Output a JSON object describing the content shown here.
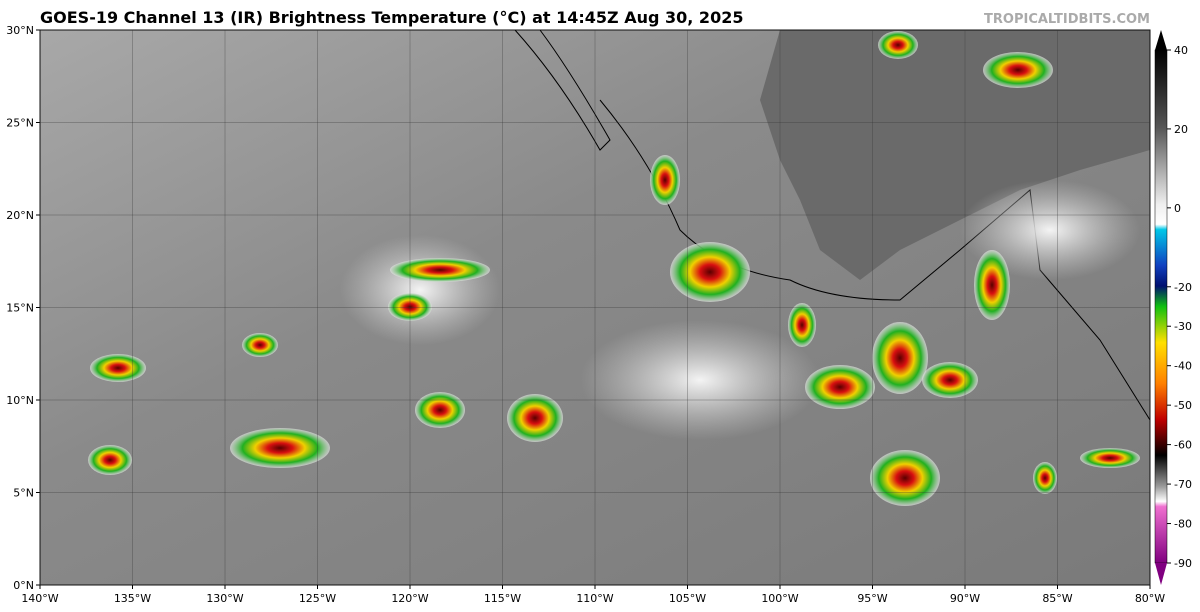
{
  "header": {
    "title": "GOES-19 Channel 13 (IR) Brightness Temperature (°C) at 14:45Z Aug 30, 2025",
    "source": "TROPICALTIDBITS.COM"
  },
  "map": {
    "lat_labels": [
      "0°N",
      "5°N",
      "10°N",
      "15°N",
      "20°N",
      "25°N",
      "30°N"
    ],
    "lon_labels": [
      "140°W",
      "135°W",
      "130°W",
      "125°W",
      "120°W",
      "115°W",
      "110°W",
      "105°W",
      "100°W",
      "95°W",
      "90°W",
      "85°W",
      "80°W"
    ]
  },
  "colorbar": {
    "ticks": [
      40,
      20,
      0,
      -20,
      -30,
      -40,
      -50,
      -60,
      -70,
      -80,
      -90
    ]
  }
}
